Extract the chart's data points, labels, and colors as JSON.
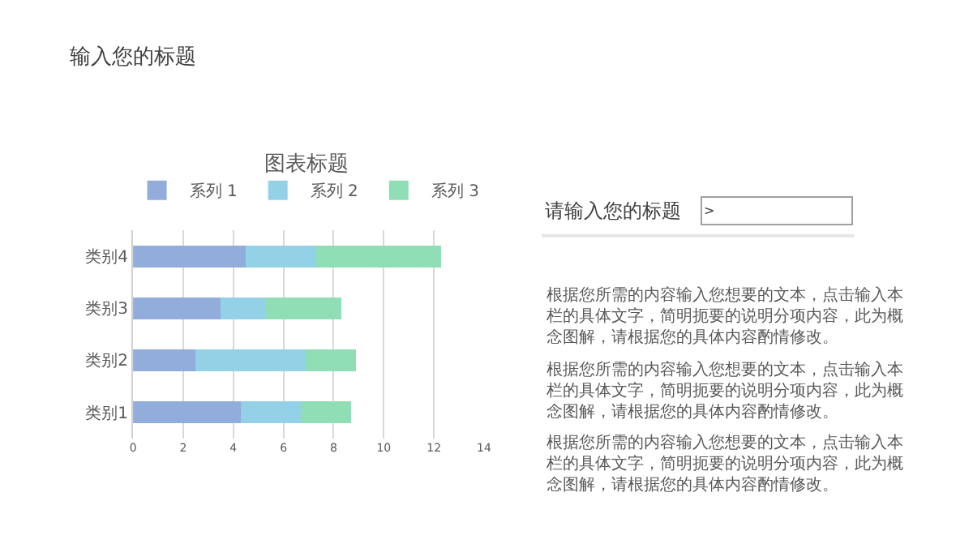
{
  "chart_data": {
    "type": "bar",
    "orientation": "horizontal",
    "stacked": true,
    "title": "图表标题",
    "categories": [
      "类别4",
      "类别3",
      "类别2",
      "类别1"
    ],
    "series": [
      {
        "name": "系列 1",
        "color": "#92acdc",
        "values": [
          4.5,
          3.5,
          2.5,
          4.3
        ]
      },
      {
        "name": "系列 2",
        "color": "#93d2e6",
        "values": [
          2.8,
          1.8,
          4.4,
          2.4
        ]
      },
      {
        "name": "系列 3",
        "color": "#90deb6",
        "values": [
          5.0,
          3.0,
          2.0,
          2.0
        ]
      }
    ],
    "xlim": [
      0,
      14
    ],
    "xticks": [
      0,
      2,
      4,
      6,
      8,
      10,
      12,
      14
    ],
    "grid": "x",
    "legend": "top",
    "annotations": [
      "输入您的标题",
      "请输入您的标题",
      ">",
      "根据您所需的内容输入您想要的文本，点击输入本栏的具体文字，简明扼要的说明分项内容，此为概念图解，请根据您的具体内容酌情修改。",
      "根据您所需的内容输入您想要的文本，点击输入本栏的具体文字，简明扼要的说明分项内容，此为概念图解，请根据您的具体内容酌情修改。",
      "根据您所需的内容输入您想要的文本，点击输入本栏的具体文字，简明扼要的说明分项内容，此为概念图解，请根据您的具体内容酌情修改。"
    ]
  }
}
